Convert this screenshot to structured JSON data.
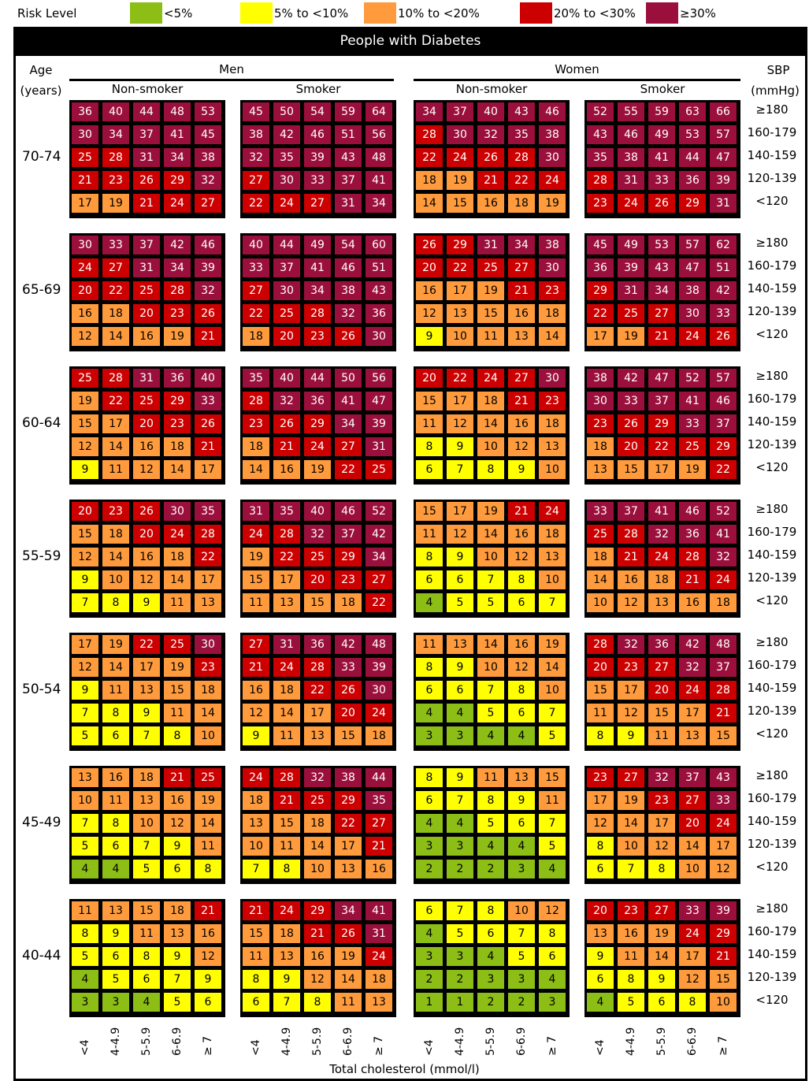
{
  "legend": {
    "title": "Risk Level",
    "items": [
      {
        "label": "<5%",
        "color": "#8cbe16"
      },
      {
        "label": "5% to <10%",
        "color": "#ffff00"
      },
      {
        "label": "10% to <20%",
        "color": "#ff9b3c"
      },
      {
        "label": "20% to <30%",
        "color": "#cc0000"
      },
      {
        "label": "≥30%",
        "color": "#9b0f3c"
      }
    ]
  },
  "header": {
    "title": "People with Diabetes",
    "age_label": "Age",
    "age_unit": "(years)",
    "men": "Men",
    "women": "Women",
    "non_smoker": "Non-smoker",
    "smoker": "Smoker",
    "sbp_label": "SBP",
    "sbp_unit": "(mmHg)"
  },
  "sbp_rows": [
    "≥180",
    "160-179",
    "140-159",
    "120-139",
    "<120"
  ],
  "chol_cols": [
    "<4",
    "4-4.9",
    "5-5.9",
    "6-6.9",
    "≥ 7"
  ],
  "axis_label": "Total cholesterol (mmol/l)",
  "chart_data": {
    "type": "heatmap",
    "title": "People with Diabetes",
    "xlabel": "Total cholesterol (mmol/l)",
    "ylabel": "SBP (mmHg)",
    "age_groups": [
      {
        "age": "70-74",
        "panels": {
          "men_non_smoker": [
            [
              36,
              40,
              44,
              48,
              53
            ],
            [
              30,
              34,
              37,
              41,
              45
            ],
            [
              25,
              28,
              31,
              34,
              38
            ],
            [
              21,
              23,
              26,
              29,
              32
            ],
            [
              17,
              19,
              21,
              24,
              27
            ]
          ],
          "men_smoker": [
            [
              45,
              50,
              54,
              59,
              64
            ],
            [
              38,
              42,
              46,
              51,
              56
            ],
            [
              32,
              35,
              39,
              43,
              48
            ],
            [
              27,
              30,
              33,
              37,
              41
            ],
            [
              22,
              24,
              27,
              31,
              34
            ]
          ],
          "women_non_smoker": [
            [
              34,
              37,
              40,
              43,
              46
            ],
            [
              28,
              30,
              32,
              35,
              38
            ],
            [
              22,
              24,
              26,
              28,
              30
            ],
            [
              18,
              19,
              21,
              22,
              24
            ],
            [
              14,
              15,
              16,
              18,
              19
            ]
          ],
          "women_smoker": [
            [
              52,
              55,
              59,
              63,
              66
            ],
            [
              43,
              46,
              49,
              53,
              57
            ],
            [
              35,
              38,
              41,
              44,
              47
            ],
            [
              28,
              31,
              33,
              36,
              39
            ],
            [
              23,
              24,
              26,
              29,
              31
            ]
          ]
        }
      },
      {
        "age": "65-69",
        "panels": {
          "men_non_smoker": [
            [
              30,
              33,
              37,
              42,
              46
            ],
            [
              24,
              27,
              31,
              34,
              39
            ],
            [
              20,
              22,
              25,
              28,
              32
            ],
            [
              16,
              18,
              20,
              23,
              26
            ],
            [
              12,
              14,
              16,
              19,
              21
            ]
          ],
          "men_smoker": [
            [
              40,
              44,
              49,
              54,
              60
            ],
            [
              33,
              37,
              41,
              46,
              51
            ],
            [
              27,
              30,
              34,
              38,
              43
            ],
            [
              22,
              25,
              28,
              32,
              36
            ],
            [
              18,
              20,
              23,
              26,
              30
            ]
          ],
          "women_non_smoker": [
            [
              26,
              29,
              31,
              34,
              38
            ],
            [
              20,
              22,
              25,
              27,
              30
            ],
            [
              16,
              17,
              19,
              21,
              23
            ],
            [
              12,
              13,
              15,
              16,
              18
            ],
            [
              9,
              10,
              11,
              13,
              14
            ]
          ],
          "women_smoker": [
            [
              45,
              49,
              53,
              57,
              62
            ],
            [
              36,
              39,
              43,
              47,
              51
            ],
            [
              29,
              31,
              34,
              38,
              42
            ],
            [
              22,
              25,
              27,
              30,
              33
            ],
            [
              17,
              19,
              21,
              24,
              26
            ]
          ]
        }
      },
      {
        "age": "60-64",
        "panels": {
          "men_non_smoker": [
            [
              25,
              28,
              31,
              36,
              40
            ],
            [
              19,
              22,
              25,
              29,
              33
            ],
            [
              15,
              17,
              20,
              23,
              26
            ],
            [
              12,
              14,
              16,
              18,
              21
            ],
            [
              9,
              11,
              12,
              14,
              17
            ]
          ],
          "men_smoker": [
            [
              35,
              40,
              44,
              50,
              56
            ],
            [
              28,
              32,
              36,
              41,
              47
            ],
            [
              23,
              26,
              29,
              34,
              39
            ],
            [
              18,
              21,
              24,
              27,
              31
            ],
            [
              14,
              16,
              19,
              22,
              25
            ]
          ],
          "women_non_smoker": [
            [
              20,
              22,
              24,
              27,
              30
            ],
            [
              15,
              17,
              18,
              21,
              23
            ],
            [
              11,
              12,
              14,
              16,
              18
            ],
            [
              8,
              9,
              10,
              12,
              13
            ],
            [
              6,
              7,
              8,
              9,
              10
            ]
          ],
          "women_smoker": [
            [
              38,
              42,
              47,
              52,
              57
            ],
            [
              30,
              33,
              37,
              41,
              46
            ],
            [
              23,
              26,
              29,
              33,
              37
            ],
            [
              18,
              20,
              22,
              25,
              29
            ],
            [
              13,
              15,
              17,
              19,
              22
            ]
          ]
        }
      },
      {
        "age": "55-59",
        "panels": {
          "men_non_smoker": [
            [
              20,
              23,
              26,
              30,
              35
            ],
            [
              15,
              18,
              20,
              24,
              28
            ],
            [
              12,
              14,
              16,
              18,
              22
            ],
            [
              9,
              10,
              12,
              14,
              17
            ],
            [
              7,
              8,
              9,
              11,
              13
            ]
          ],
          "men_smoker": [
            [
              31,
              35,
              40,
              46,
              52
            ],
            [
              24,
              28,
              32,
              37,
              42
            ],
            [
              19,
              22,
              25,
              29,
              34
            ],
            [
              15,
              17,
              20,
              23,
              27
            ],
            [
              11,
              13,
              15,
              18,
              22
            ]
          ],
          "women_non_smoker": [
            [
              15,
              17,
              19,
              21,
              24
            ],
            [
              11,
              12,
              14,
              16,
              18
            ],
            [
              8,
              9,
              10,
              12,
              13
            ],
            [
              6,
              6,
              7,
              8,
              10
            ],
            [
              4,
              5,
              5,
              6,
              7
            ]
          ],
          "women_smoker": [
            [
              33,
              37,
              41,
              46,
              52
            ],
            [
              25,
              28,
              32,
              36,
              41
            ],
            [
              18,
              21,
              24,
              28,
              32
            ],
            [
              14,
              16,
              18,
              21,
              24
            ],
            [
              10,
              12,
              13,
              16,
              18
            ]
          ]
        }
      },
      {
        "age": "50-54",
        "panels": {
          "men_non_smoker": [
            [
              17,
              19,
              22,
              25,
              30
            ],
            [
              12,
              14,
              17,
              19,
              23
            ],
            [
              9,
              11,
              13,
              15,
              18
            ],
            [
              7,
              8,
              9,
              11,
              14
            ],
            [
              5,
              6,
              7,
              8,
              10
            ]
          ],
          "men_smoker": [
            [
              27,
              31,
              36,
              42,
              48
            ],
            [
              21,
              24,
              28,
              33,
              39
            ],
            [
              16,
              18,
              22,
              26,
              30
            ],
            [
              12,
              14,
              17,
              20,
              24
            ],
            [
              9,
              11,
              13,
              15,
              18
            ]
          ],
          "women_non_smoker": [
            [
              11,
              13,
              14,
              16,
              19
            ],
            [
              8,
              9,
              10,
              12,
              14
            ],
            [
              6,
              6,
              7,
              8,
              10
            ],
            [
              4,
              4,
              5,
              6,
              7
            ],
            [
              3,
              3,
              4,
              4,
              5
            ]
          ],
          "women_smoker": [
            [
              28,
              32,
              36,
              42,
              48
            ],
            [
              20,
              23,
              27,
              32,
              37
            ],
            [
              15,
              17,
              20,
              24,
              28
            ],
            [
              11,
              12,
              15,
              17,
              21
            ],
            [
              8,
              9,
              11,
              13,
              15
            ]
          ]
        }
      },
      {
        "age": "45-49",
        "panels": {
          "men_non_smoker": [
            [
              13,
              16,
              18,
              21,
              25
            ],
            [
              10,
              11,
              13,
              16,
              19
            ],
            [
              7,
              8,
              10,
              12,
              14
            ],
            [
              5,
              6,
              7,
              9,
              11
            ],
            [
              4,
              4,
              5,
              6,
              8
            ]
          ],
          "men_smoker": [
            [
              24,
              28,
              32,
              38,
              44
            ],
            [
              18,
              21,
              25,
              29,
              35
            ],
            [
              13,
              15,
              18,
              22,
              27
            ],
            [
              10,
              11,
              14,
              17,
              21
            ],
            [
              7,
              8,
              10,
              13,
              16
            ]
          ],
          "women_non_smoker": [
            [
              8,
              9,
              11,
              13,
              15
            ],
            [
              6,
              7,
              8,
              9,
              11
            ],
            [
              4,
              4,
              5,
              6,
              7
            ],
            [
              3,
              3,
              4,
              4,
              5
            ],
            [
              2,
              2,
              2,
              3,
              4
            ]
          ],
          "women_smoker": [
            [
              23,
              27,
              32,
              37,
              43
            ],
            [
              17,
              19,
              23,
              27,
              33
            ],
            [
              12,
              14,
              17,
              20,
              24
            ],
            [
              8,
              10,
              12,
              14,
              17
            ],
            [
              6,
              7,
              8,
              10,
              12
            ]
          ]
        }
      },
      {
        "age": "40-44",
        "panels": {
          "men_non_smoker": [
            [
              11,
              13,
              15,
              18,
              21
            ],
            [
              8,
              9,
              11,
              13,
              16
            ],
            [
              5,
              6,
              8,
              9,
              12
            ],
            [
              4,
              5,
              6,
              7,
              9
            ],
            [
              3,
              3,
              4,
              5,
              6
            ]
          ],
          "men_smoker": [
            [
              21,
              24,
              29,
              34,
              41
            ],
            [
              15,
              18,
              21,
              26,
              31
            ],
            [
              11,
              13,
              16,
              19,
              24
            ],
            [
              8,
              9,
              12,
              14,
              18
            ],
            [
              6,
              7,
              8,
              11,
              13
            ]
          ],
          "women_non_smoker": [
            [
              6,
              7,
              8,
              10,
              12
            ],
            [
              4,
              5,
              6,
              7,
              8
            ],
            [
              3,
              3,
              4,
              5,
              6
            ],
            [
              2,
              2,
              3,
              3,
              4
            ],
            [
              1,
              1,
              2,
              2,
              3
            ]
          ],
          "women_smoker": [
            [
              20,
              23,
              27,
              33,
              39
            ],
            [
              13,
              16,
              19,
              24,
              29
            ],
            [
              9,
              11,
              14,
              17,
              21
            ],
            [
              6,
              8,
              9,
              12,
              15
            ],
            [
              4,
              5,
              6,
              8,
              10
            ]
          ]
        }
      }
    ]
  }
}
